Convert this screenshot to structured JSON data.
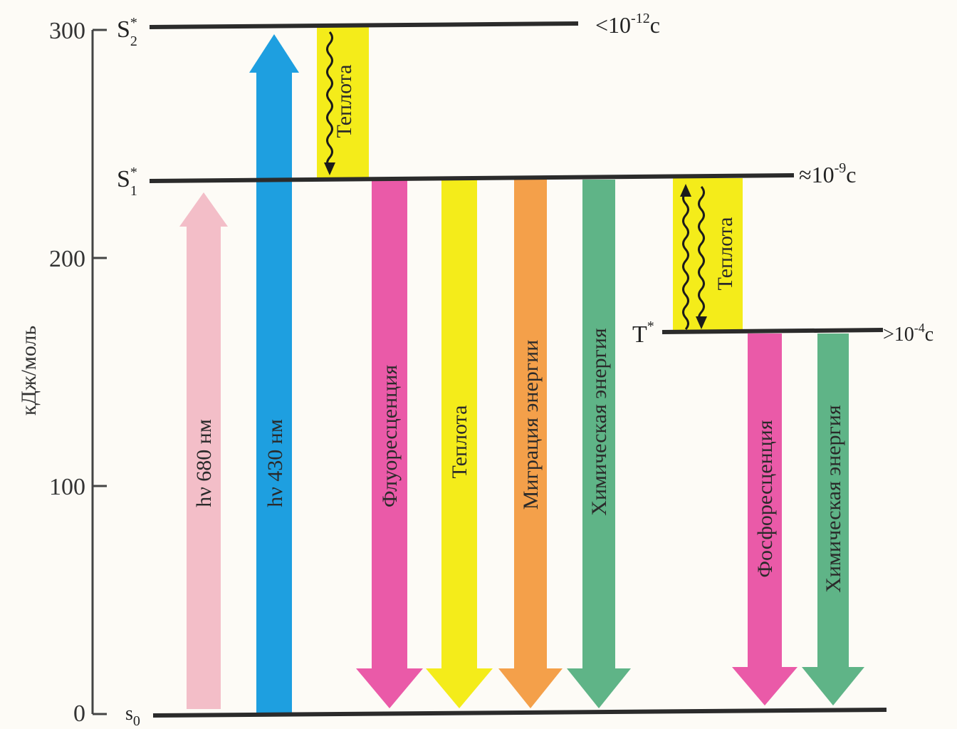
{
  "axis": {
    "ylabel": "кДж/моль",
    "ticks": [
      "300",
      "200",
      "100",
      "0"
    ]
  },
  "levels": {
    "s2": {
      "label": "S",
      "sub": "2",
      "sup": "*",
      "time": "<10",
      "time_exp": "-12",
      "time_unit": "c"
    },
    "s1": {
      "label": "S",
      "sub": "1",
      "sup": "*",
      "time": "≈10",
      "time_exp": "-9",
      "time_unit": "c"
    },
    "t": {
      "label": "T",
      "sup": "*",
      "time": ">10",
      "time_exp": "-4",
      "time_unit": "c"
    },
    "s0": {
      "label": "s",
      "sub": "0"
    }
  },
  "arrows": {
    "hv680": "hν 680 нм",
    "hv430": "hν 430 нм",
    "heat_s2": "Теплота",
    "fluorescence": "Флуоресценция",
    "heat_s1": "Теплота",
    "migration": "Миграция энергии",
    "chem_s1": "Химическая энергия",
    "heat_t": "Теплота",
    "phosphorescence": "Фосфоресценция",
    "chem_t": "Химическая энергия"
  },
  "colors": {
    "pink_light": "#f2b7c3",
    "blue": "#1e9fe0",
    "yellow": "#f4ec1a",
    "magenta": "#ea5aa8",
    "orange": "#f4a04a",
    "green": "#5fb487"
  }
}
